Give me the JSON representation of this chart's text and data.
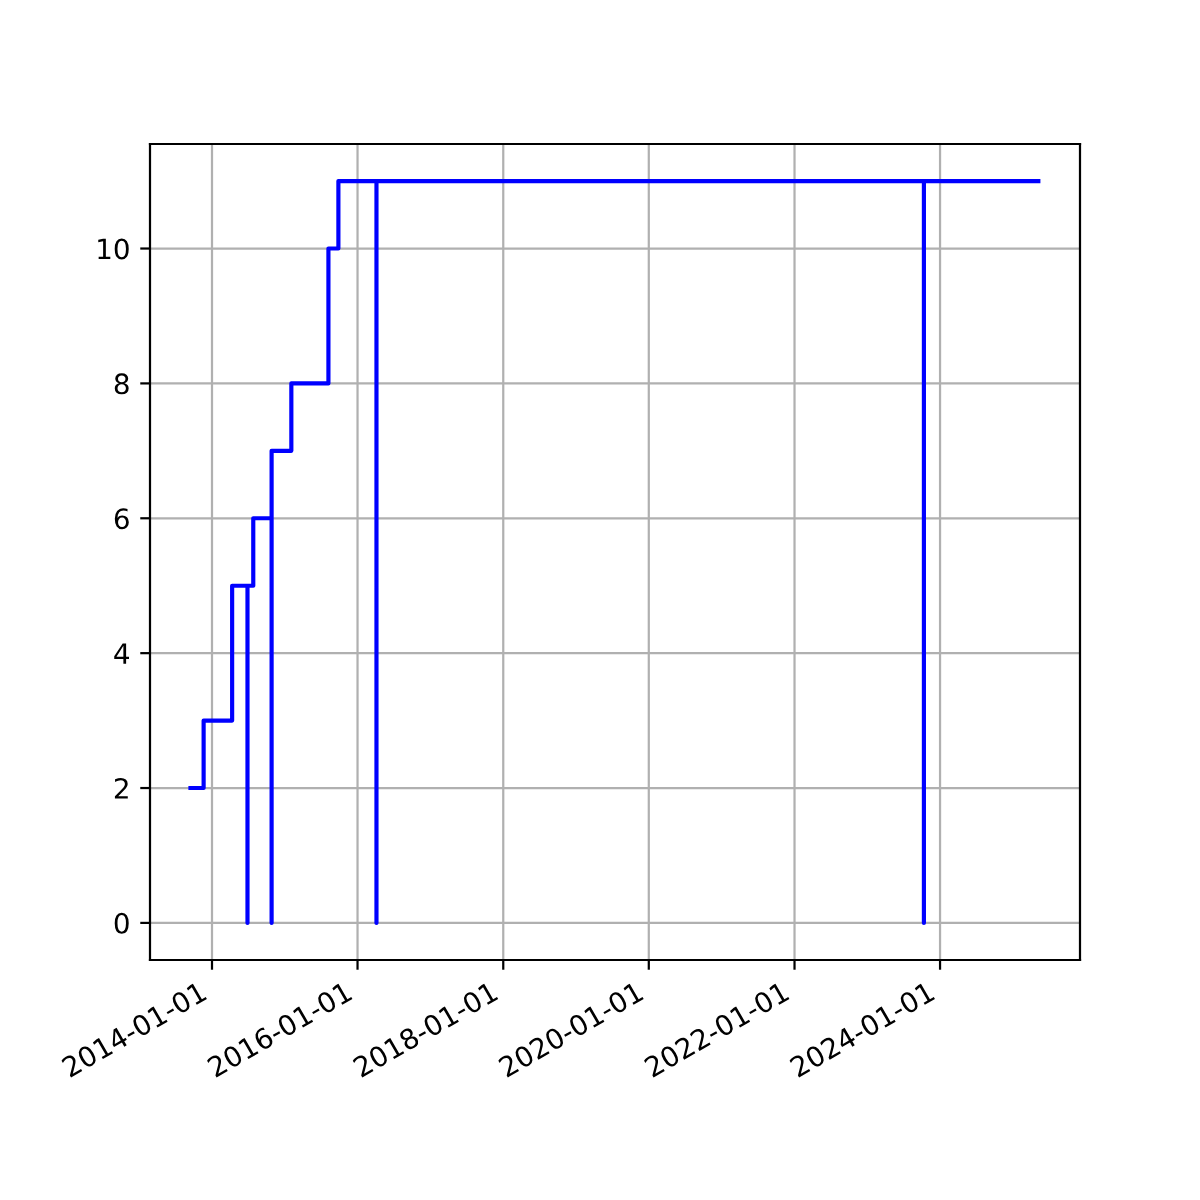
{
  "chart_data": {
    "type": "line",
    "x": [
      "2013-09-15",
      "2013-11-20",
      "2013-11-20",
      "2014-04-12",
      "2014-04-12",
      "2014-06-28",
      "2014-06-28",
      "2014-06-28",
      "2014-07-27",
      "2014-07-27",
      "2014-10-27",
      "2014-10-27",
      "2014-10-27",
      "2015-02-03",
      "2015-02-03",
      "2015-08-08",
      "2015-08-08",
      "2015-09-27",
      "2015-09-27",
      "2016-04-05",
      "2016-04-05",
      "2016-04-05",
      "2023-10-12",
      "2023-10-12",
      "2023-10-12",
      "2025-05-08"
    ],
    "series": [
      {
        "color": "#0000ff",
        "values": [
          2,
          2,
          3,
          3,
          5,
          5,
          0,
          5,
          5,
          6,
          6,
          0,
          7,
          7,
          8,
          8,
          10,
          10,
          11,
          11,
          0,
          11,
          11,
          0,
          11,
          11
        ]
      }
    ],
    "xlim": [
      "2013-02-24",
      "2025-12-03"
    ],
    "xticks": [
      "2014-01-01",
      "2016-01-01",
      "2018-01-01",
      "2020-01-01",
      "2022-01-01",
      "2024-01-01"
    ],
    "ylim": [
      -0.55,
      11.55
    ],
    "yticks": [
      0,
      2,
      4,
      6,
      8,
      10
    ],
    "grid": true,
    "marker": "none",
    "line_style": "solid"
  }
}
